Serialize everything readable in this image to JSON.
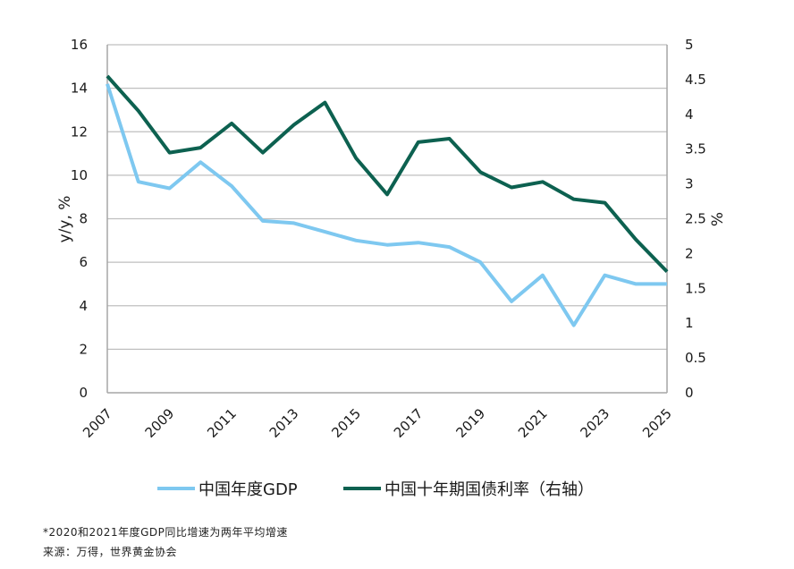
{
  "chart_data": {
    "type": "line",
    "x": [
      "2007",
      "2008",
      "2009",
      "2010",
      "2011",
      "2012",
      "2013",
      "2014",
      "2015",
      "2016",
      "2017",
      "2018",
      "2019",
      "2020",
      "2021",
      "2022",
      "2023",
      "2024",
      "2025"
    ],
    "x_tick_labels": [
      "2007",
      "2009",
      "2011",
      "2013",
      "2015",
      "2017",
      "2019",
      "2021",
      "2023",
      "2025"
    ],
    "ylabel": "y/y, %",
    "y2label": "%",
    "ylim": [
      0,
      16
    ],
    "y_ticks": [
      "0",
      "2",
      "4",
      "6",
      "8",
      "10",
      "12",
      "14",
      "16"
    ],
    "y2lim": [
      0,
      5
    ],
    "y2_ticks": [
      "0",
      "0.5",
      "1",
      "1.5",
      "2",
      "2.5",
      "3",
      "3.5",
      "4",
      "4.5",
      "5"
    ],
    "grid": true,
    "legend_position": "bottom",
    "series": [
      {
        "name": "中国年度GDP",
        "axis": "left",
        "color": "#7ec8f0",
        "values": [
          14.2,
          9.7,
          9.4,
          10.6,
          9.5,
          7.9,
          7.8,
          7.4,
          7.0,
          6.8,
          6.9,
          6.7,
          6.0,
          4.2,
          5.4,
          3.1,
          5.4,
          5.0,
          5.0
        ]
      },
      {
        "name": "中国十年期国债利率（右轴）",
        "axis": "right",
        "color": "#0d6150",
        "values": [
          4.55,
          4.05,
          3.45,
          3.52,
          3.87,
          3.45,
          3.85,
          4.17,
          3.37,
          2.85,
          3.6,
          3.65,
          3.17,
          2.95,
          3.03,
          2.78,
          2.73,
          2.2,
          1.74
        ]
      }
    ]
  },
  "footnote": "*2020和2021年度GDP同比增速为两年平均增速",
  "source": "来源：万得，世界黄金协会"
}
